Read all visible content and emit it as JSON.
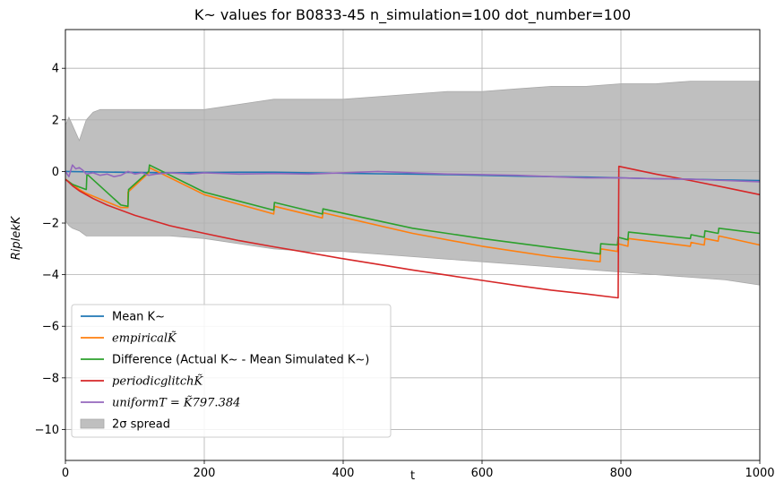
{
  "chart_data": {
    "type": "line",
    "title": "K~ values for B0833-45 n_simulation=100 dot_number=100",
    "xlabel": "t",
    "ylabel": "RiplekK",
    "xlim": [
      0,
      1000
    ],
    "ylim": [
      -11.2,
      5.5
    ],
    "xticks": [
      0,
      200,
      400,
      600,
      800,
      1000
    ],
    "yticks": [
      -10,
      -8,
      -6,
      -4,
      -2,
      0,
      2,
      4
    ],
    "grid": true,
    "legend_position": "lower-left",
    "band": {
      "name": "2σ spread",
      "color": "#bfbfbf",
      "x": [
        0,
        5,
        10,
        20,
        25,
        30,
        40,
        50,
        80,
        100,
        150,
        200,
        250,
        300,
        350,
        400,
        450,
        500,
        550,
        600,
        650,
        700,
        750,
        800,
        850,
        900,
        950,
        1000
      ],
      "upper": [
        1.8,
        2.1,
        1.8,
        1.2,
        1.6,
        2.0,
        2.3,
        2.4,
        2.4,
        2.4,
        2.4,
        2.4,
        2.6,
        2.8,
        2.8,
        2.8,
        2.9,
        3.0,
        3.1,
        3.1,
        3.2,
        3.3,
        3.3,
        3.4,
        3.4,
        3.5,
        3.5,
        3.5
      ],
      "lower": [
        -1.9,
        -2.1,
        -2.2,
        -2.3,
        -2.4,
        -2.5,
        -2.5,
        -2.5,
        -2.5,
        -2.5,
        -2.5,
        -2.6,
        -2.8,
        -3.0,
        -3.1,
        -3.1,
        -3.2,
        -3.3,
        -3.4,
        -3.5,
        -3.6,
        -3.7,
        -3.8,
        -3.9,
        -4.0,
        -4.1,
        -4.2,
        -4.4
      ]
    },
    "series": [
      {
        "name": "Mean K~",
        "color": "#1f77b4",
        "x": [
          0,
          50,
          100,
          150,
          200,
          250,
          300,
          350,
          400,
          450,
          500,
          550,
          600,
          650,
          700,
          750,
          800,
          850,
          900,
          950,
          1000
        ],
        "y": [
          0,
          -0.02,
          -0.04,
          -0.05,
          -0.04,
          -0.03,
          -0.03,
          -0.05,
          -0.07,
          -0.09,
          -0.1,
          -0.12,
          -0.15,
          -0.18,
          -0.2,
          -0.22,
          -0.25,
          -0.28,
          -0.3,
          -0.33,
          -0.35
        ]
      },
      {
        "name": "empiricalK̃",
        "color": "#ff7f0e",
        "x": [
          0,
          10,
          20,
          30,
          80,
          90,
          90,
          120,
          121,
          200,
          300,
          301,
          370,
          371,
          500,
          600,
          700,
          770,
          771,
          795,
          796,
          810,
          811,
          900,
          901,
          920,
          921,
          940,
          941,
          1000
        ],
        "y": [
          -0.3,
          -0.5,
          -0.7,
          -0.85,
          -1.4,
          -1.4,
          -0.8,
          -0.05,
          0.15,
          -0.9,
          -1.65,
          -1.35,
          -1.8,
          -1.6,
          -2.4,
          -2.9,
          -3.3,
          -3.5,
          -3.0,
          -3.1,
          -2.8,
          -2.9,
          -2.6,
          -2.9,
          -2.75,
          -2.85,
          -2.6,
          -2.7,
          -2.5,
          -2.85
        ]
      },
      {
        "name": "Difference (Actual K~ - Mean Simulated K~)",
        "color": "#2ca02c",
        "x": [
          0,
          10,
          20,
          30,
          31,
          80,
          90,
          91,
          120,
          121,
          200,
          300,
          301,
          370,
          371,
          500,
          600,
          700,
          770,
          771,
          795,
          796,
          810,
          811,
          900,
          901,
          920,
          921,
          940,
          941,
          1000
        ],
        "y": [
          -0.3,
          -0.5,
          -0.6,
          -0.7,
          -0.1,
          -1.3,
          -1.35,
          -0.7,
          0.0,
          0.25,
          -0.8,
          -1.5,
          -1.2,
          -1.65,
          -1.45,
          -2.2,
          -2.6,
          -2.95,
          -3.2,
          -2.8,
          -2.85,
          -2.55,
          -2.65,
          -2.35,
          -2.6,
          -2.45,
          -2.55,
          -2.3,
          -2.4,
          -2.2,
          -2.4
        ]
      },
      {
        "name": "periodicglitchK̃",
        "color": "#d62728",
        "x": [
          0,
          5,
          10,
          20,
          40,
          60,
          100,
          150,
          200,
          250,
          300,
          350,
          400,
          450,
          500,
          550,
          600,
          650,
          700,
          750,
          796,
          797,
          850,
          900,
          950,
          1000
        ],
        "y": [
          -0.3,
          -0.42,
          -0.55,
          -0.75,
          -1.05,
          -1.3,
          -1.7,
          -2.1,
          -2.4,
          -2.68,
          -2.92,
          -3.15,
          -3.38,
          -3.6,
          -3.82,
          -4.02,
          -4.22,
          -4.42,
          -4.6,
          -4.75,
          -4.9,
          0.2,
          -0.1,
          -0.35,
          -0.62,
          -0.9
        ]
      },
      {
        "name": "uniformT = K̃797.384",
        "color": "#9467bd",
        "x": [
          0,
          5,
          10,
          15,
          20,
          25,
          30,
          40,
          50,
          60,
          70,
          80,
          90,
          100,
          110,
          120,
          130,
          150,
          180,
          200,
          250,
          300,
          350,
          400,
          450,
          500,
          550,
          600,
          650,
          700,
          750,
          800,
          850,
          900,
          950,
          1000
        ],
        "y": [
          0,
          -0.2,
          0.25,
          0.1,
          0.15,
          0.05,
          -0.1,
          -0.05,
          -0.15,
          -0.1,
          -0.2,
          -0.15,
          0.0,
          -0.1,
          -0.05,
          -0.15,
          -0.1,
          -0.05,
          -0.1,
          -0.05,
          -0.1,
          -0.08,
          -0.1,
          -0.05,
          0.0,
          -0.05,
          -0.1,
          -0.12,
          -0.15,
          -0.2,
          -0.25,
          -0.25,
          -0.28,
          -0.3,
          -0.35,
          -0.4
        ]
      }
    ]
  }
}
